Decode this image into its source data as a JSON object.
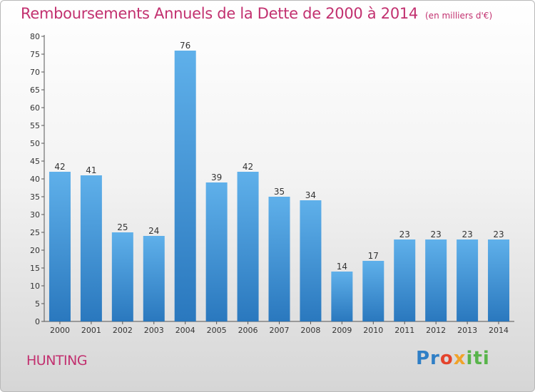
{
  "header": {
    "title": "Remboursements Annuels de la Dette de 2000 à 2014",
    "unit": "(en milliers d'€)"
  },
  "commune": "HUNTING",
  "logo": {
    "p1": "Pr",
    "p2": "o",
    "p3": "x",
    "p4": "iti",
    "colors": [
      "#2f7fc6",
      "#e4442d",
      "#f0a32a",
      "#58b44a"
    ]
  },
  "colors": {
    "bar_top": "#5fb0ea",
    "bar_bottom": "#2a78be",
    "title": "#c2306f"
  },
  "chart_data": {
    "type": "bar",
    "categories": [
      "2000",
      "2001",
      "2002",
      "2003",
      "2004",
      "2005",
      "2006",
      "2007",
      "2008",
      "2009",
      "2010",
      "2011",
      "2012",
      "2013",
      "2014"
    ],
    "values": [
      42,
      41,
      25,
      24,
      76,
      39,
      42,
      35,
      34,
      14,
      17,
      23,
      23,
      23,
      23
    ],
    "title": "Remboursements Annuels de la Dette de 2000 à 2014",
    "xlabel": "",
    "ylabel": "",
    "ylim": [
      0,
      80
    ],
    "yticks": [
      0,
      5,
      10,
      15,
      20,
      25,
      30,
      35,
      40,
      45,
      50,
      55,
      60,
      65,
      70,
      75,
      80
    ],
    "grid": false,
    "data_labels": true
  }
}
